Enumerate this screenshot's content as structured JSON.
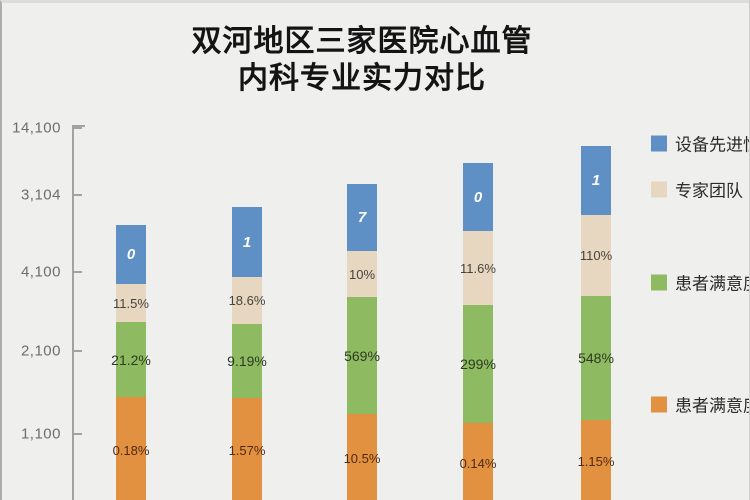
{
  "title": {
    "line1": "双河地区三家医院心血管",
    "line2": "内科专业实力对比"
  },
  "colors": {
    "blue": "#5f90c5",
    "tan": "#e7d7c0",
    "green": "#8eba62",
    "orange": "#e29140",
    "background": "#efefee",
    "axis": "#a2a2a2"
  },
  "chart_data": {
    "type": "bar",
    "stacked": true,
    "title": "双河地区三家医院心血管内科专业实力对比",
    "xlabel": "",
    "ylabel": "",
    "grid": false,
    "legend_position": "right",
    "y_ticks": [
      {
        "label": "14,100",
        "y": 125
      },
      {
        "label": "3,104",
        "y": 192
      },
      {
        "label": "4,100",
        "y": 269
      },
      {
        "label": "2,100",
        "y": 348
      },
      {
        "label": "1,100",
        "y": 431
      }
    ],
    "legend": [
      {
        "key": "blue",
        "label": "设备先进性",
        "y": 140
      },
      {
        "key": "tan",
        "label": "专家团队",
        "y": 186
      },
      {
        "key": "green",
        "label": "患者满意度",
        "y": 279
      },
      {
        "key": "orange",
        "label": "患者满意度",
        "y": 401
      }
    ],
    "series_top_to_bottom": [
      "设备先进性",
      "专家团队",
      "患者满意度",
      "患者满意度"
    ],
    "bars": [
      {
        "x": 114,
        "width": 30,
        "segments": [
          {
            "series": "设备先进性",
            "key": "blue",
            "top": 222,
            "bottom": 281,
            "label": "0"
          },
          {
            "series": "专家团队",
            "key": "tan",
            "top": 281,
            "bottom": 319,
            "label": "11.5%"
          },
          {
            "series": "患者满意度",
            "key": "green",
            "top": 319,
            "bottom": 394,
            "label": "21.2%"
          },
          {
            "series": "患者满意度",
            "key": "orange",
            "top": 394,
            "bottom": 500,
            "label": "0.18%"
          }
        ]
      },
      {
        "x": 230,
        "width": 30,
        "segments": [
          {
            "series": "设备先进性",
            "key": "blue",
            "top": 204,
            "bottom": 274,
            "label": "1"
          },
          {
            "series": "专家团队",
            "key": "tan",
            "top": 274,
            "bottom": 321,
            "label": "18.6%"
          },
          {
            "series": "患者满意度",
            "key": "green",
            "top": 321,
            "bottom": 395,
            "label": "9.19%"
          },
          {
            "series": "患者满意度",
            "key": "orange",
            "top": 395,
            "bottom": 500,
            "label": "1.57%"
          }
        ]
      },
      {
        "x": 345,
        "width": 30,
        "segments": [
          {
            "series": "设备先进性",
            "key": "blue",
            "top": 181,
            "bottom": 248,
            "label": "7"
          },
          {
            "series": "专家团队",
            "key": "tan",
            "top": 248,
            "bottom": 294,
            "label": "10%"
          },
          {
            "series": "患者满意度",
            "key": "green",
            "top": 294,
            "bottom": 411,
            "label": "569%"
          },
          {
            "series": "患者满意度",
            "key": "orange",
            "top": 411,
            "bottom": 500,
            "label": "10.5%"
          }
        ]
      },
      {
        "x": 461,
        "width": 30,
        "segments": [
          {
            "series": "设备先进性",
            "key": "blue",
            "top": 160,
            "bottom": 228,
            "label": "0"
          },
          {
            "series": "专家团队",
            "key": "tan",
            "top": 228,
            "bottom": 302,
            "label": "11.6%"
          },
          {
            "series": "患者满意度",
            "key": "green",
            "top": 302,
            "bottom": 420,
            "label": "299%"
          },
          {
            "series": "患者满意度",
            "key": "orange",
            "top": 420,
            "bottom": 500,
            "label": "0.14%"
          }
        ]
      },
      {
        "x": 579,
        "width": 30,
        "segments": [
          {
            "series": "设备先进性",
            "key": "blue",
            "top": 143,
            "bottom": 212,
            "label": "1"
          },
          {
            "series": "专家团队",
            "key": "tan",
            "top": 212,
            "bottom": 293,
            "label": "110%"
          },
          {
            "series": "患者满意度",
            "key": "green",
            "top": 293,
            "bottom": 417,
            "label": "548%"
          },
          {
            "series": "患者满意度",
            "key": "orange",
            "top": 417,
            "bottom": 500,
            "label": "1.15%"
          }
        ]
      }
    ]
  }
}
